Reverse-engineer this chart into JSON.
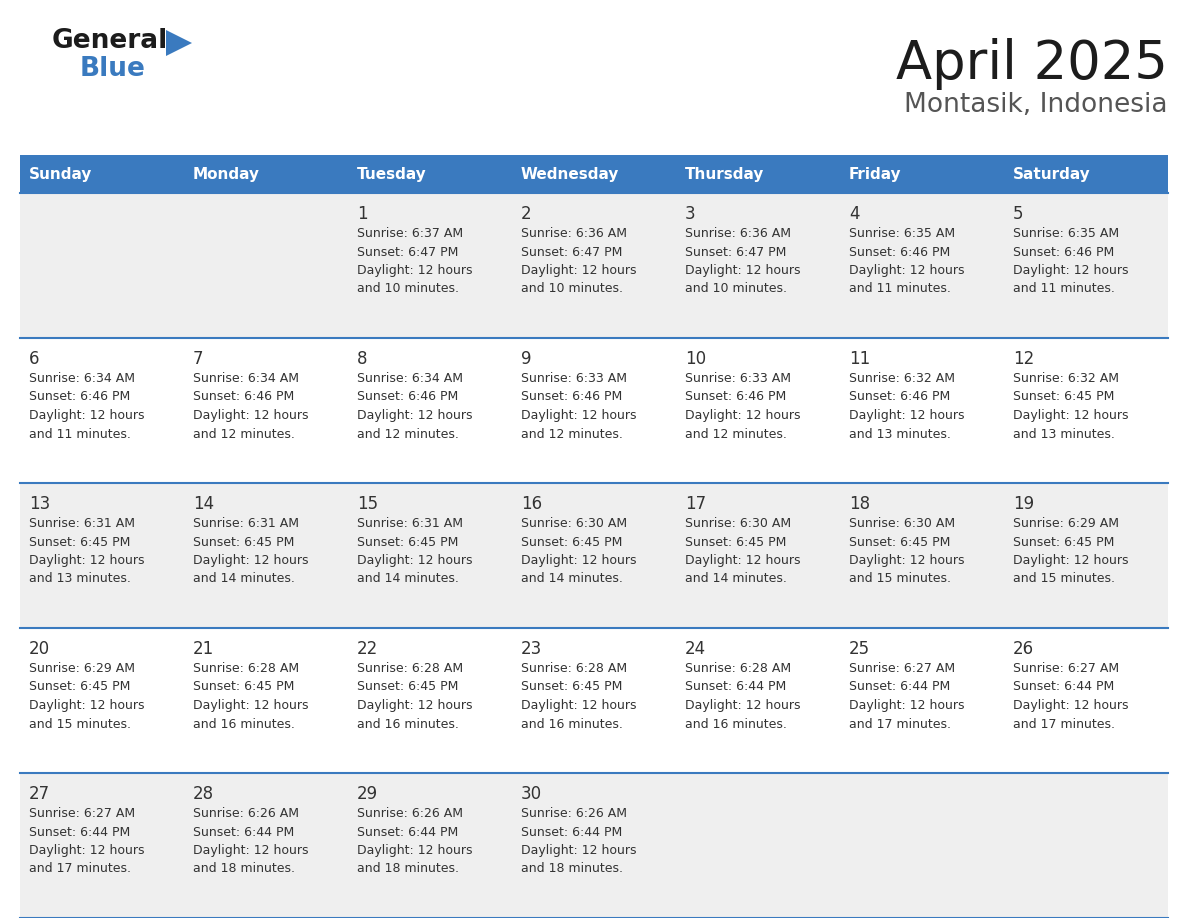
{
  "title": "April 2025",
  "subtitle": "Montasik, Indonesia",
  "header_bg_color": "#3a7abf",
  "header_text_color": "#ffffff",
  "day_names": [
    "Sunday",
    "Monday",
    "Tuesday",
    "Wednesday",
    "Thursday",
    "Friday",
    "Saturday"
  ],
  "row_bg_even": "#efefef",
  "row_bg_odd": "#ffffff",
  "border_color": "#3a7abf",
  "text_color": "#333333",
  "days": [
    {
      "day": 1,
      "col": 2,
      "row": 0,
      "sunrise": "6:37 AM",
      "sunset": "6:47 PM",
      "daylight_min": "10"
    },
    {
      "day": 2,
      "col": 3,
      "row": 0,
      "sunrise": "6:36 AM",
      "sunset": "6:47 PM",
      "daylight_min": "10"
    },
    {
      "day": 3,
      "col": 4,
      "row": 0,
      "sunrise": "6:36 AM",
      "sunset": "6:47 PM",
      "daylight_min": "10"
    },
    {
      "day": 4,
      "col": 5,
      "row": 0,
      "sunrise": "6:35 AM",
      "sunset": "6:46 PM",
      "daylight_min": "11"
    },
    {
      "day": 5,
      "col": 6,
      "row": 0,
      "sunrise": "6:35 AM",
      "sunset": "6:46 PM",
      "daylight_min": "11"
    },
    {
      "day": 6,
      "col": 0,
      "row": 1,
      "sunrise": "6:34 AM",
      "sunset": "6:46 PM",
      "daylight_min": "11"
    },
    {
      "day": 7,
      "col": 1,
      "row": 1,
      "sunrise": "6:34 AM",
      "sunset": "6:46 PM",
      "daylight_min": "12"
    },
    {
      "day": 8,
      "col": 2,
      "row": 1,
      "sunrise": "6:34 AM",
      "sunset": "6:46 PM",
      "daylight_min": "12"
    },
    {
      "day": 9,
      "col": 3,
      "row": 1,
      "sunrise": "6:33 AM",
      "sunset": "6:46 PM",
      "daylight_min": "12"
    },
    {
      "day": 10,
      "col": 4,
      "row": 1,
      "sunrise": "6:33 AM",
      "sunset": "6:46 PM",
      "daylight_min": "12"
    },
    {
      "day": 11,
      "col": 5,
      "row": 1,
      "sunrise": "6:32 AM",
      "sunset": "6:46 PM",
      "daylight_min": "13"
    },
    {
      "day": 12,
      "col": 6,
      "row": 1,
      "sunrise": "6:32 AM",
      "sunset": "6:45 PM",
      "daylight_min": "13"
    },
    {
      "day": 13,
      "col": 0,
      "row": 2,
      "sunrise": "6:31 AM",
      "sunset": "6:45 PM",
      "daylight_min": "13"
    },
    {
      "day": 14,
      "col": 1,
      "row": 2,
      "sunrise": "6:31 AM",
      "sunset": "6:45 PM",
      "daylight_min": "14"
    },
    {
      "day": 15,
      "col": 2,
      "row": 2,
      "sunrise": "6:31 AM",
      "sunset": "6:45 PM",
      "daylight_min": "14"
    },
    {
      "day": 16,
      "col": 3,
      "row": 2,
      "sunrise": "6:30 AM",
      "sunset": "6:45 PM",
      "daylight_min": "14"
    },
    {
      "day": 17,
      "col": 4,
      "row": 2,
      "sunrise": "6:30 AM",
      "sunset": "6:45 PM",
      "daylight_min": "14"
    },
    {
      "day": 18,
      "col": 5,
      "row": 2,
      "sunrise": "6:30 AM",
      "sunset": "6:45 PM",
      "daylight_min": "15"
    },
    {
      "day": 19,
      "col": 6,
      "row": 2,
      "sunrise": "6:29 AM",
      "sunset": "6:45 PM",
      "daylight_min": "15"
    },
    {
      "day": 20,
      "col": 0,
      "row": 3,
      "sunrise": "6:29 AM",
      "sunset": "6:45 PM",
      "daylight_min": "15"
    },
    {
      "day": 21,
      "col": 1,
      "row": 3,
      "sunrise": "6:28 AM",
      "sunset": "6:45 PM",
      "daylight_min": "16"
    },
    {
      "day": 22,
      "col": 2,
      "row": 3,
      "sunrise": "6:28 AM",
      "sunset": "6:45 PM",
      "daylight_min": "16"
    },
    {
      "day": 23,
      "col": 3,
      "row": 3,
      "sunrise": "6:28 AM",
      "sunset": "6:45 PM",
      "daylight_min": "16"
    },
    {
      "day": 24,
      "col": 4,
      "row": 3,
      "sunrise": "6:28 AM",
      "sunset": "6:44 PM",
      "daylight_min": "16"
    },
    {
      "day": 25,
      "col": 5,
      "row": 3,
      "sunrise": "6:27 AM",
      "sunset": "6:44 PM",
      "daylight_min": "17"
    },
    {
      "day": 26,
      "col": 6,
      "row": 3,
      "sunrise": "6:27 AM",
      "sunset": "6:44 PM",
      "daylight_min": "17"
    },
    {
      "day": 27,
      "col": 0,
      "row": 4,
      "sunrise": "6:27 AM",
      "sunset": "6:44 PM",
      "daylight_min": "17"
    },
    {
      "day": 28,
      "col": 1,
      "row": 4,
      "sunrise": "6:26 AM",
      "sunset": "6:44 PM",
      "daylight_min": "18"
    },
    {
      "day": 29,
      "col": 2,
      "row": 4,
      "sunrise": "6:26 AM",
      "sunset": "6:44 PM",
      "daylight_min": "18"
    },
    {
      "day": 30,
      "col": 3,
      "row": 4,
      "sunrise": "6:26 AM",
      "sunset": "6:44 PM",
      "daylight_min": "18"
    }
  ]
}
